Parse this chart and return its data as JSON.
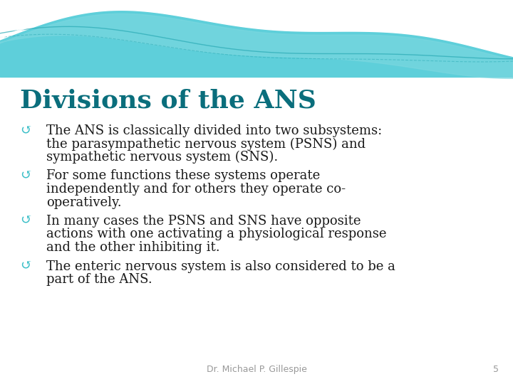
{
  "title": "Divisions of the ANS",
  "title_color": "#0a6e7c",
  "title_fontsize": 26,
  "background_color": "#ffffff",
  "bullet_color": "#3bbfc8",
  "text_color": "#1a1a1a",
  "footer_text": "Dr. Michael P. Gillespie",
  "footer_number": "5",
  "footer_color": "#999999",
  "footer_fontsize": 9,
  "text_fontsize": 13,
  "bullet_lines": [
    [
      "The ANS is classically divided into two subsystems:",
      "the parasympathetic nervous system (PSNS) and",
      "sympathetic nervous system (SNS)."
    ],
    [
      "For some functions these systems operate",
      "independently and for others they operate co-",
      "operatively."
    ],
    [
      "In many cases the PSNS and SNS have opposite",
      "actions with one activating a physiological response",
      "and the other inhibiting it."
    ],
    [
      "The enteric nervous system is also considered to be a",
      "part of the ANS."
    ]
  ],
  "wave_bg_color": "#5ecfda",
  "wave_white_color": "#ffffff",
  "wave_teal_color": "#3ab8c5"
}
